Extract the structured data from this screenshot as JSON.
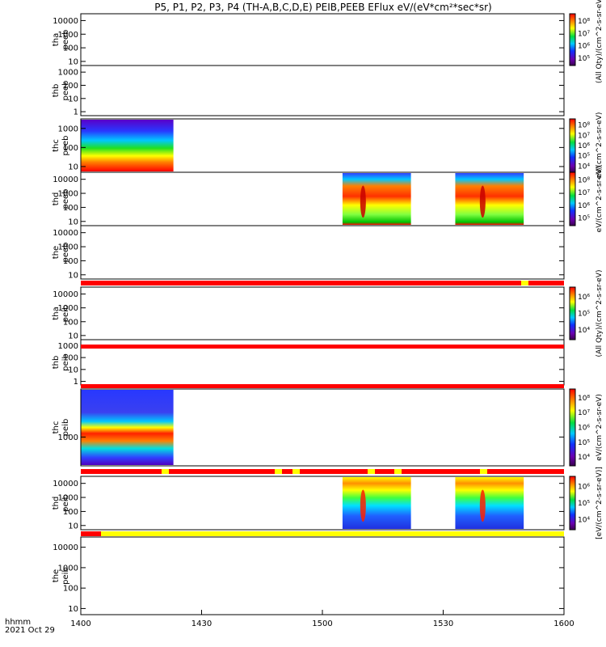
{
  "title": "P5, P1, P2, P3, P4 (TH-A,B,C,D,E) PEIB,PEEB EFlux eV/(eV*cm²*sec*sr)",
  "chart_data": {
    "type": "heatmap",
    "title": "P5, P1, P2, P3, P4 (TH-A,B,C,D,E) PEIB,PEEB EFlux eV/(eV*cm²*sec*sr)",
    "x_axis": {
      "range": [
        "1400",
        "1600"
      ],
      "ticks": [
        "1400",
        "1430",
        "1500",
        "1530",
        "1600"
      ],
      "label_top": "hhmm",
      "label_bottom": "2021 Oct 29"
    },
    "colormap": "rainbow (purple → blue → cyan → green → yellow → red)",
    "panels": [
      {
        "name": "tha peeb",
        "label_1": "tha",
        "label_2": "peeb",
        "yscale": "log",
        "yticks": [
          "10",
          "100",
          "1000",
          "10000"
        ],
        "colorbar": {
          "ticks": [
            "10⁵",
            "10⁶",
            "10⁷",
            "10⁸"
          ],
          "label": "(All Qty)/(cm^2-s-sr-eV)"
        },
        "data_intervals": []
      },
      {
        "name": "thb peeb",
        "label_1": "thb",
        "label_2": "peeb",
        "yscale": "log",
        "yticks": [
          "1",
          "10",
          "100",
          "1000"
        ],
        "data_intervals": []
      },
      {
        "name": "thc peeb",
        "label_1": "thc",
        "label_2": "peeb",
        "yscale": "log",
        "yticks": [
          "10",
          "100",
          "1000"
        ],
        "colorbar": {
          "ticks": [
            "10⁴",
            "10⁵",
            "10⁶",
            "10⁷",
            "10⁸"
          ],
          "label": "eV/(cm^2-s-sr-eV)"
        },
        "data_intervals": [
          {
            "start": "14:00",
            "end": "14:23"
          }
        ]
      },
      {
        "name": "thd peeb",
        "label_1": "thd",
        "label_2": "peeb",
        "yscale": "log",
        "yticks": [
          "10",
          "100",
          "1000",
          "10000"
        ],
        "colorbar": {
          "ticks": [
            "10⁵",
            "10⁶",
            "10⁷",
            "10⁸"
          ],
          "label": "eV/(cm^2-s-sr-eV)"
        },
        "data_intervals": [
          {
            "start": "15:05",
            "end": "15:22"
          },
          {
            "start": "15:33",
            "end": "15:50"
          }
        ]
      },
      {
        "name": "the peeb",
        "label_1": "the",
        "label_2": "peeb",
        "yscale": "log",
        "yticks": [
          "10",
          "100",
          "1000",
          "10000"
        ],
        "data_intervals": []
      },
      {
        "name": "tha peib",
        "label_1": "tha",
        "label_2": "peib",
        "yscale": "log",
        "yticks": [
          "10",
          "100",
          "1000",
          "10000"
        ],
        "colorbar": {
          "ticks": [
            "10⁴",
            "10⁵",
            "10⁶"
          ],
          "label": "(All Qty)/(cm^2-s-sr-eV)"
        },
        "data_intervals": []
      },
      {
        "name": "thb peib",
        "label_1": "thb",
        "label_2": "peib",
        "yscale": "log",
        "yticks": [
          "1",
          "10",
          "100",
          "1000"
        ],
        "data_intervals": []
      },
      {
        "name": "thc peib",
        "label_1": "thc",
        "label_2": "peib",
        "yscale": "log",
        "yticks": [
          "1000"
        ],
        "colorbar": {
          "ticks": [
            "10⁴",
            "10⁵",
            "10⁶",
            "10⁷",
            "10⁸"
          ],
          "label": "eV/(cm^2-s-sr-eV)"
        },
        "data_intervals": [
          {
            "start": "14:00",
            "end": "14:23"
          }
        ]
      },
      {
        "name": "thd peib",
        "label_1": "thd",
        "label_2": "peib",
        "yscale": "log",
        "yticks": [
          "10",
          "100",
          "1000",
          "10000"
        ],
        "colorbar": {
          "ticks": [
            "10⁴",
            "10⁵",
            "10⁶"
          ],
          "label": "[eV/(cm^2-s-sr-eV)]"
        },
        "data_intervals": [
          {
            "start": "15:05",
            "end": "15:22"
          },
          {
            "start": "15:33",
            "end": "15:50"
          }
        ]
      },
      {
        "name": "the peib",
        "label_1": "the",
        "label_2": "peib",
        "yscale": "log",
        "yticks": [
          "10",
          "100",
          "1000",
          "10000"
        ],
        "data_intervals": []
      }
    ]
  }
}
